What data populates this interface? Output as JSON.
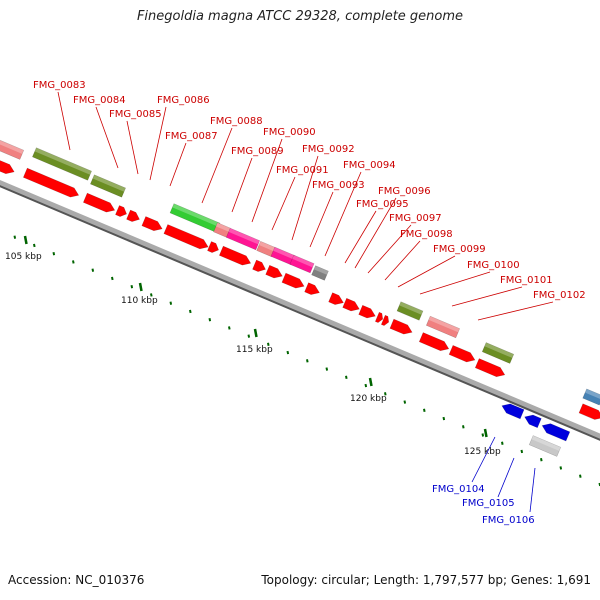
{
  "title": "Finegoldia magna ATCC 29328, complete genome",
  "footer": {
    "accession": "Accession: NC_010376",
    "stats": "Topology: circular; Length: 1,797,577 bp; Genes: 1,691"
  },
  "colors": {
    "cds_red": "#ff0000",
    "olive": "#6b8e23",
    "salmon": "#f08080",
    "green": "#33cc33",
    "magenta": "#ff1493",
    "gray": "#808080",
    "blue": "#0000dd",
    "steelblue": "#4682b4",
    "light_gray": "#c8c8c8",
    "label_red": "#cc0000",
    "label_blue": "#0000cc",
    "tick_green": "#006400"
  },
  "ticks": [
    {
      "label": "105 kbp"
    },
    {
      "label": "110 kbp"
    },
    {
      "label": "115 kbp"
    },
    {
      "label": "120 kbp"
    },
    {
      "label": "125 kbp"
    }
  ],
  "gene_labels_top": [
    "FMG_0083",
    "FMG_0084",
    "FMG_0085",
    "FMG_0086",
    "FMG_0087",
    "FMG_0088",
    "FMG_0089",
    "FMG_0090",
    "FMG_0091",
    "FMG_0092",
    "FMG_0093",
    "FMG_0094",
    "FMG_0095",
    "FMG_0096",
    "FMG_0097",
    "FMG_0098",
    "FMG_0099",
    "FMG_0100",
    "FMG_0101",
    "FMG_0102"
  ],
  "gene_labels_bottom": [
    "FMG_0104",
    "FMG_0105",
    "FMG_0106"
  ]
}
